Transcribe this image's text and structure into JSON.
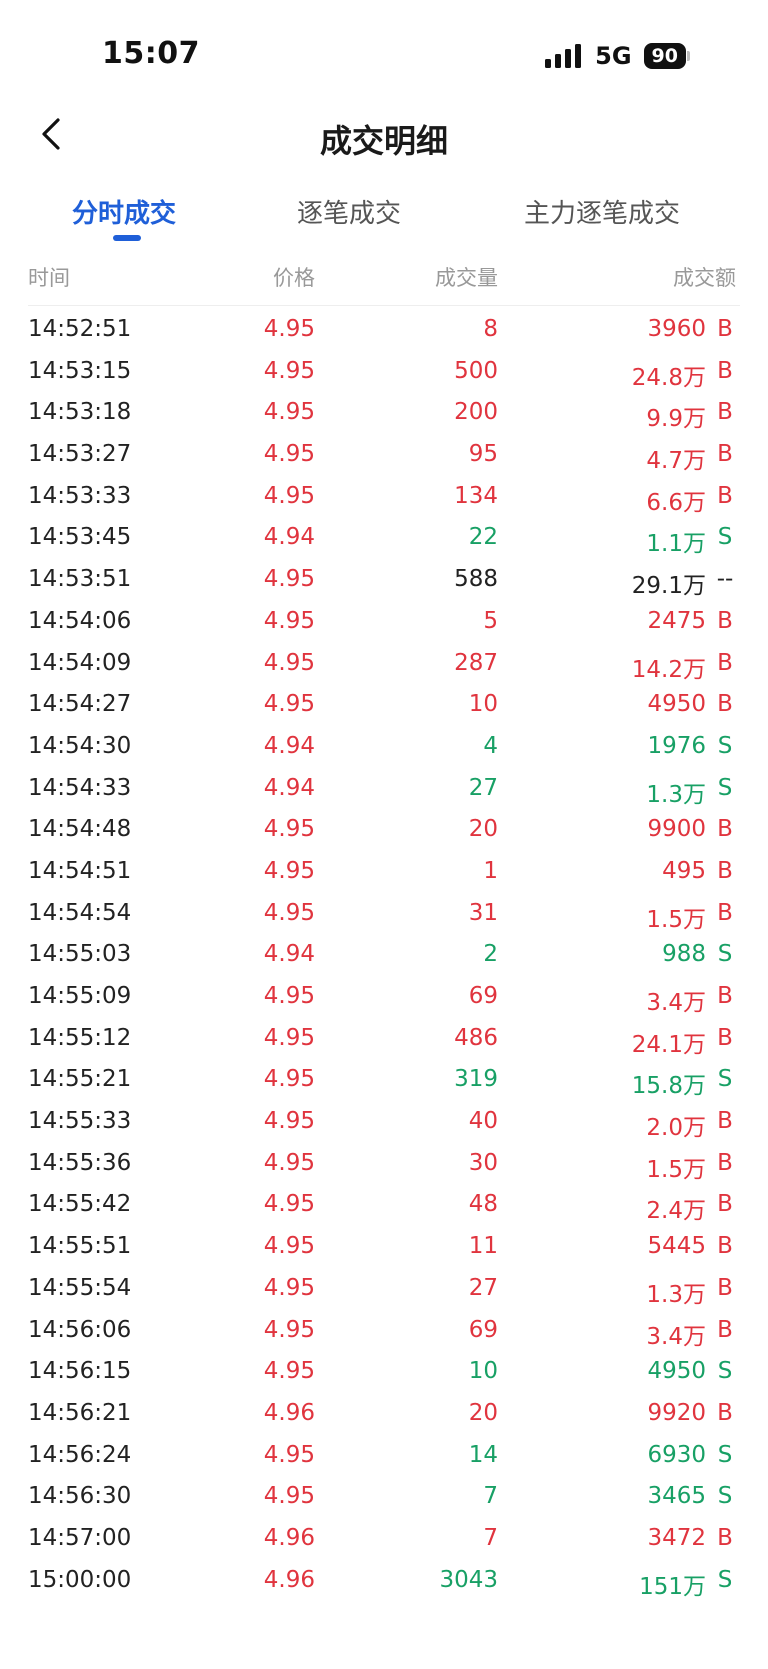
{
  "status_bar": {
    "time": "15:07",
    "network": "5G",
    "battery": "90"
  },
  "nav": {
    "title": "成交明细"
  },
  "tabs": [
    {
      "label": "分时成交",
      "active": true
    },
    {
      "label": "逐笔成交",
      "active": false
    },
    {
      "label": "主力逐笔成交",
      "active": false
    }
  ],
  "columns": {
    "time": "时间",
    "price": "价格",
    "volume": "成交量",
    "amount": "成交额"
  },
  "colors": {
    "up": "#e0343e",
    "down": "#18a065",
    "neutral": "#222222",
    "accent": "#1f5fd8"
  },
  "rows": [
    {
      "time": "14:52:51",
      "price": "4.95",
      "price_dir": "up",
      "volume": "8",
      "amount": "3960",
      "side": "B",
      "dir": "up"
    },
    {
      "time": "14:53:15",
      "price": "4.95",
      "price_dir": "up",
      "volume": "500",
      "amount": "24.8万",
      "side": "B",
      "dir": "up"
    },
    {
      "time": "14:53:18",
      "price": "4.95",
      "price_dir": "up",
      "volume": "200",
      "amount": "9.9万",
      "side": "B",
      "dir": "up"
    },
    {
      "time": "14:53:27",
      "price": "4.95",
      "price_dir": "up",
      "volume": "95",
      "amount": "4.7万",
      "side": "B",
      "dir": "up"
    },
    {
      "time": "14:53:33",
      "price": "4.95",
      "price_dir": "up",
      "volume": "134",
      "amount": "6.6万",
      "side": "B",
      "dir": "up"
    },
    {
      "time": "14:53:45",
      "price": "4.94",
      "price_dir": "up",
      "volume": "22",
      "amount": "1.1万",
      "side": "S",
      "dir": "down"
    },
    {
      "time": "14:53:51",
      "price": "4.95",
      "price_dir": "up",
      "volume": "588",
      "amount": "29.1万",
      "side": "--",
      "dir": "flat"
    },
    {
      "time": "14:54:06",
      "price": "4.95",
      "price_dir": "up",
      "volume": "5",
      "amount": "2475",
      "side": "B",
      "dir": "up"
    },
    {
      "time": "14:54:09",
      "price": "4.95",
      "price_dir": "up",
      "volume": "287",
      "amount": "14.2万",
      "side": "B",
      "dir": "up"
    },
    {
      "time": "14:54:27",
      "price": "4.95",
      "price_dir": "up",
      "volume": "10",
      "amount": "4950",
      "side": "B",
      "dir": "up"
    },
    {
      "time": "14:54:30",
      "price": "4.94",
      "price_dir": "up",
      "volume": "4",
      "amount": "1976",
      "side": "S",
      "dir": "down"
    },
    {
      "time": "14:54:33",
      "price": "4.94",
      "price_dir": "up",
      "volume": "27",
      "amount": "1.3万",
      "side": "S",
      "dir": "down"
    },
    {
      "time": "14:54:48",
      "price": "4.95",
      "price_dir": "up",
      "volume": "20",
      "amount": "9900",
      "side": "B",
      "dir": "up"
    },
    {
      "time": "14:54:51",
      "price": "4.95",
      "price_dir": "up",
      "volume": "1",
      "amount": "495",
      "side": "B",
      "dir": "up"
    },
    {
      "time": "14:54:54",
      "price": "4.95",
      "price_dir": "up",
      "volume": "31",
      "amount": "1.5万",
      "side": "B",
      "dir": "up"
    },
    {
      "time": "14:55:03",
      "price": "4.94",
      "price_dir": "up",
      "volume": "2",
      "amount": "988",
      "side": "S",
      "dir": "down"
    },
    {
      "time": "14:55:09",
      "price": "4.95",
      "price_dir": "up",
      "volume": "69",
      "amount": "3.4万",
      "side": "B",
      "dir": "up"
    },
    {
      "time": "14:55:12",
      "price": "4.95",
      "price_dir": "up",
      "volume": "486",
      "amount": "24.1万",
      "side": "B",
      "dir": "up"
    },
    {
      "time": "14:55:21",
      "price": "4.95",
      "price_dir": "up",
      "volume": "319",
      "amount": "15.8万",
      "side": "S",
      "dir": "down"
    },
    {
      "time": "14:55:33",
      "price": "4.95",
      "price_dir": "up",
      "volume": "40",
      "amount": "2.0万",
      "side": "B",
      "dir": "up"
    },
    {
      "time": "14:55:36",
      "price": "4.95",
      "price_dir": "up",
      "volume": "30",
      "amount": "1.5万",
      "side": "B",
      "dir": "up"
    },
    {
      "time": "14:55:42",
      "price": "4.95",
      "price_dir": "up",
      "volume": "48",
      "amount": "2.4万",
      "side": "B",
      "dir": "up"
    },
    {
      "time": "14:55:51",
      "price": "4.95",
      "price_dir": "up",
      "volume": "11",
      "amount": "5445",
      "side": "B",
      "dir": "up"
    },
    {
      "time": "14:55:54",
      "price": "4.95",
      "price_dir": "up",
      "volume": "27",
      "amount": "1.3万",
      "side": "B",
      "dir": "up"
    },
    {
      "time": "14:56:06",
      "price": "4.95",
      "price_dir": "up",
      "volume": "69",
      "amount": "3.4万",
      "side": "B",
      "dir": "up"
    },
    {
      "time": "14:56:15",
      "price": "4.95",
      "price_dir": "up",
      "volume": "10",
      "amount": "4950",
      "side": "S",
      "dir": "down"
    },
    {
      "time": "14:56:21",
      "price": "4.96",
      "price_dir": "up",
      "volume": "20",
      "amount": "9920",
      "side": "B",
      "dir": "up"
    },
    {
      "time": "14:56:24",
      "price": "4.95",
      "price_dir": "up",
      "volume": "14",
      "amount": "6930",
      "side": "S",
      "dir": "down"
    },
    {
      "time": "14:56:30",
      "price": "4.95",
      "price_dir": "up",
      "volume": "7",
      "amount": "3465",
      "side": "S",
      "dir": "down"
    },
    {
      "time": "14:57:00",
      "price": "4.96",
      "price_dir": "up",
      "volume": "7",
      "amount": "3472",
      "side": "B",
      "dir": "up"
    },
    {
      "time": "15:00:00",
      "price": "4.96",
      "price_dir": "up",
      "volume": "3043",
      "amount": "151万",
      "side": "S",
      "dir": "down"
    }
  ]
}
